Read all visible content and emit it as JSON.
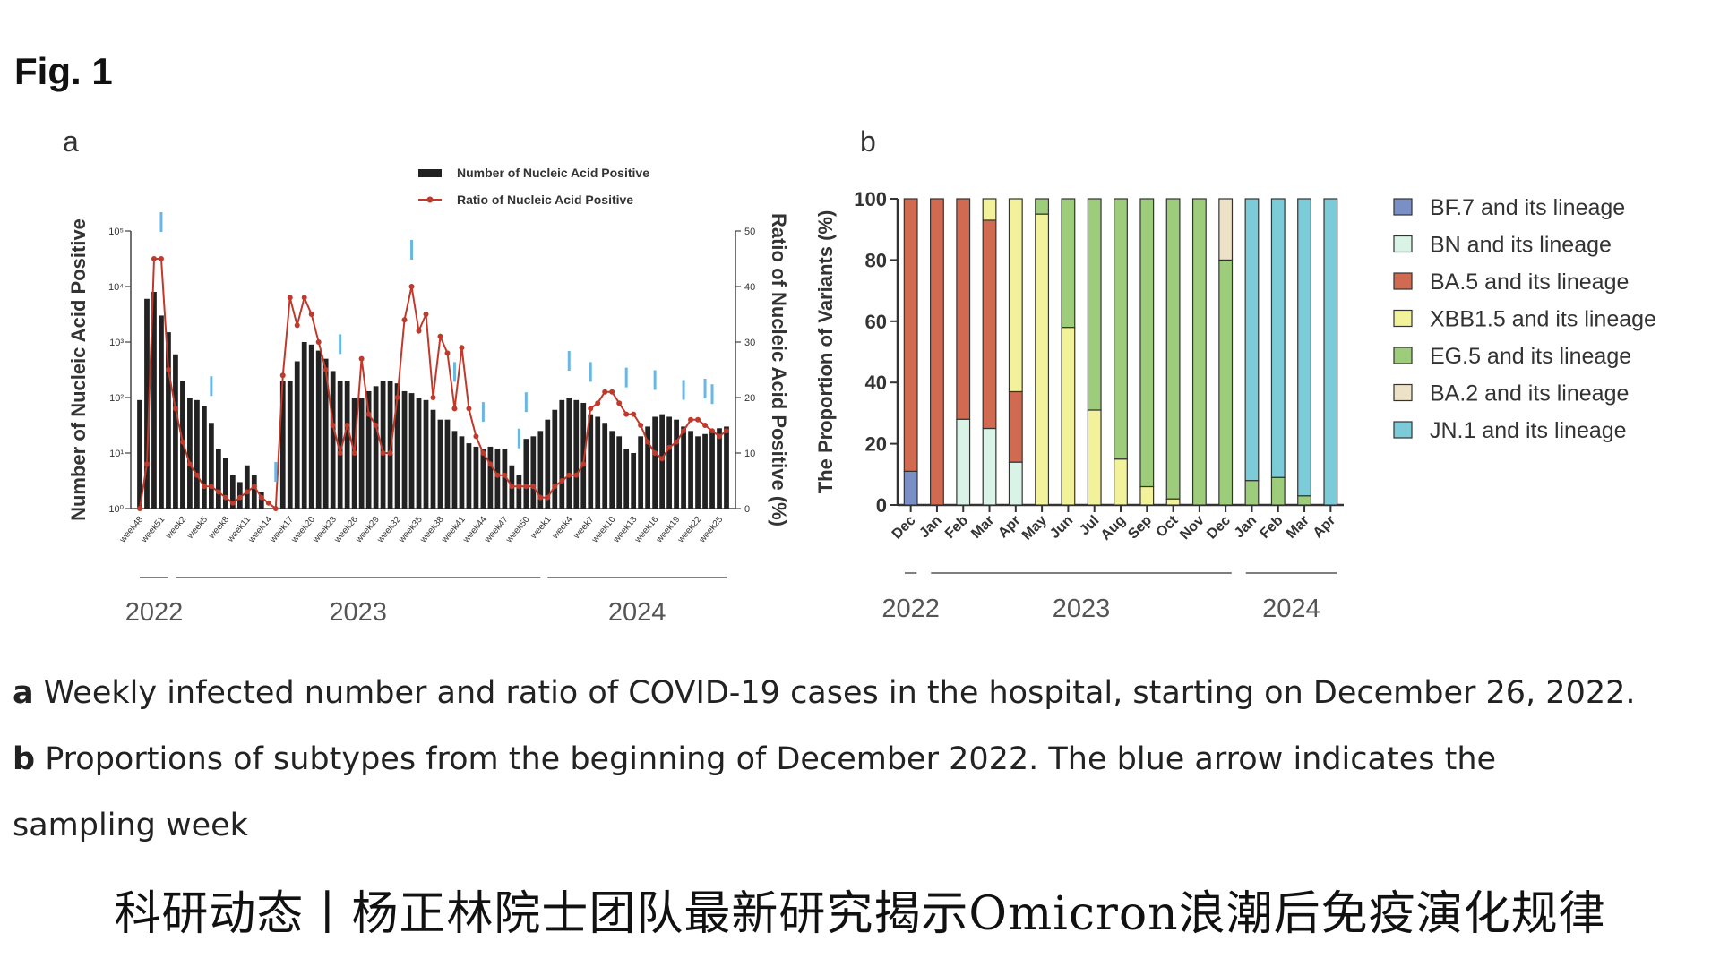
{
  "figure_label": "Fig. 1",
  "caption": {
    "a_letter": "a",
    "a_text": " Weekly infected number and ratio of COVID-19 cases in the hospital, starting on December 26, 2022.",
    "b_letter": "b",
    "b_text_line1": " Proportions of subtypes from the beginning of December 2022. The blue arrow indicates the",
    "b_text_line2": "sampling week"
  },
  "banner": "科研动态丨杨正林院士团队最新研究揭示Omicron浪潮后免疫演化规律",
  "chart_data": [
    {
      "panel": "a",
      "type": "bar",
      "ylabel": "Number of Nucleic Acid Positive",
      "y2label": "Ratio of Nucleic Acid Positive (%)",
      "yscale": "log",
      "ylim": [
        1,
        100000
      ],
      "y_ticks": [
        "10⁰",
        "10¹",
        "10²",
        "10³",
        "10⁴",
        "10⁵"
      ],
      "y2lim": [
        0,
        50
      ],
      "y2_ticks": [
        "0",
        "10",
        "20",
        "30",
        "40",
        "50"
      ],
      "x_tick_labels": [
        "week48",
        "week51",
        "week2",
        "week5",
        "week8",
        "week11",
        "week14",
        "week17",
        "week20",
        "week23",
        "week26",
        "week29",
        "week32",
        "week35",
        "week38",
        "week41",
        "week44",
        "week47",
        "week50",
        "week1",
        "week4",
        "week7",
        "week10",
        "week13",
        "week16",
        "week19",
        "week22",
        "week25"
      ],
      "year_groups": [
        {
          "label": "2022",
          "start": 0,
          "end": 4
        },
        {
          "label": "2023",
          "start": 5,
          "end": 56
        },
        {
          "label": "2024",
          "start": 57,
          "end": 82
        }
      ],
      "legend": [
        "Number of Nucleic Acid Positive",
        "Ratio of Nucleic Acid Positive"
      ],
      "legend_position": "top-right",
      "colors": {
        "bar": "#222222",
        "line": "#c0392b",
        "arrow": "#6ab7e6"
      },
      "series": [
        {
          "name": "Number of Nucleic Acid Positive",
          "kind": "bar",
          "values": [
            90,
            6000,
            8000,
            3000,
            1500,
            600,
            200,
            100,
            90,
            70,
            35,
            12,
            8,
            4,
            3,
            6,
            4,
            2,
            1,
            1,
            200,
            200,
            450,
            1000,
            900,
            700,
            500,
            300,
            200,
            200,
            100,
            100,
            130,
            160,
            200,
            200,
            180,
            130,
            120,
            100,
            90,
            60,
            40,
            40,
            25,
            20,
            15,
            13,
            12,
            13,
            12,
            12,
            6,
            4,
            18,
            20,
            25,
            40,
            60,
            90,
            100,
            90,
            80,
            50,
            45,
            35,
            25,
            20,
            12,
            10,
            20,
            30,
            45,
            50,
            45,
            40,
            30,
            25,
            20,
            22,
            25,
            28,
            30
          ]
        },
        {
          "name": "Ratio of Nucleic Acid Positive",
          "kind": "line",
          "values": [
            0,
            8,
            45,
            45,
            25,
            18,
            12,
            8,
            6,
            4,
            4,
            3,
            2,
            1,
            2,
            3,
            4,
            2,
            1,
            0,
            24,
            38,
            33,
            38,
            35,
            30,
            25,
            15,
            10,
            15,
            10,
            27,
            17,
            15,
            10,
            10,
            20,
            34,
            40,
            32,
            35,
            20,
            31,
            28,
            18,
            29,
            18,
            13,
            10,
            8,
            6,
            6,
            4,
            4,
            4,
            4,
            2,
            2,
            4,
            5,
            6,
            6,
            8,
            18,
            19,
            21,
            21,
            19,
            17,
            17,
            15,
            12,
            10,
            9,
            11,
            12,
            14,
            16,
            16,
            15,
            14,
            13,
            14
          ]
        }
      ],
      "sampling_arrows_at": [
        3,
        10,
        19,
        28,
        38,
        44,
        48,
        53,
        54,
        60,
        63,
        68,
        72,
        76,
        79,
        80
      ]
    },
    {
      "panel": "b",
      "type": "bar",
      "stacked": true,
      "ylabel": "The Proportion of Variants (%)",
      "ylim": [
        0,
        100
      ],
      "y_ticks": [
        "0",
        "20",
        "40",
        "60",
        "80",
        "100"
      ],
      "categories": [
        "Dec",
        "Jan",
        "Feb",
        "Mar",
        "Apr",
        "May",
        "Jun",
        "Jul",
        "Aug",
        "Sep",
        "Oct",
        "Nov",
        "Dec",
        "Jan",
        "Feb",
        "Mar",
        "Apr"
      ],
      "year_groups": [
        {
          "label": "2022",
          "start": 0,
          "end": 0
        },
        {
          "label": "2023",
          "start": 1,
          "end": 12
        },
        {
          "label": "2024",
          "start": 13,
          "end": 16
        }
      ],
      "legend_position": "right",
      "series": [
        {
          "name": "BF.7 and its lineage",
          "color": "#7b8fc7",
          "values": [
            11,
            0,
            0,
            0,
            0,
            0,
            0,
            0,
            0,
            0,
            0,
            0,
            0,
            0,
            0,
            0,
            0
          ]
        },
        {
          "name": "BN and its lineage",
          "color": "#d9f4e6",
          "values": [
            0,
            0,
            28,
            25,
            14,
            0,
            0,
            0,
            0,
            0,
            0,
            0,
            0,
            0,
            0,
            0,
            0
          ]
        },
        {
          "name": "BA.5 and its lineage",
          "color": "#d06b52",
          "values": [
            89,
            100,
            72,
            68,
            23,
            0,
            0,
            0,
            0,
            0,
            0,
            0,
            0,
            0,
            0,
            0,
            0
          ]
        },
        {
          "name": "XBB1.5 and its lineage",
          "color": "#f2f29a",
          "values": [
            0,
            0,
            0,
            7,
            63,
            95,
            58,
            31,
            15,
            6,
            2,
            0,
            0,
            0,
            0,
            0,
            0
          ]
        },
        {
          "name": "EG.5 and its lineage",
          "color": "#9dcc7a",
          "values": [
            0,
            0,
            0,
            0,
            0,
            5,
            42,
            69,
            85,
            94,
            98,
            100,
            80,
            8,
            9,
            3,
            0
          ]
        },
        {
          "name": "BA.2 and its lineage",
          "color": "#ede2c8",
          "values": [
            0,
            0,
            0,
            0,
            0,
            0,
            0,
            0,
            0,
            0,
            0,
            0,
            20,
            0,
            0,
            0,
            0
          ]
        },
        {
          "name": "JN.1 and its lineage",
          "color": "#7ccbd8",
          "values": [
            0,
            0,
            0,
            0,
            0,
            0,
            0,
            0,
            0,
            0,
            0,
            0,
            0,
            92,
            91,
            97,
            100
          ]
        }
      ]
    }
  ]
}
